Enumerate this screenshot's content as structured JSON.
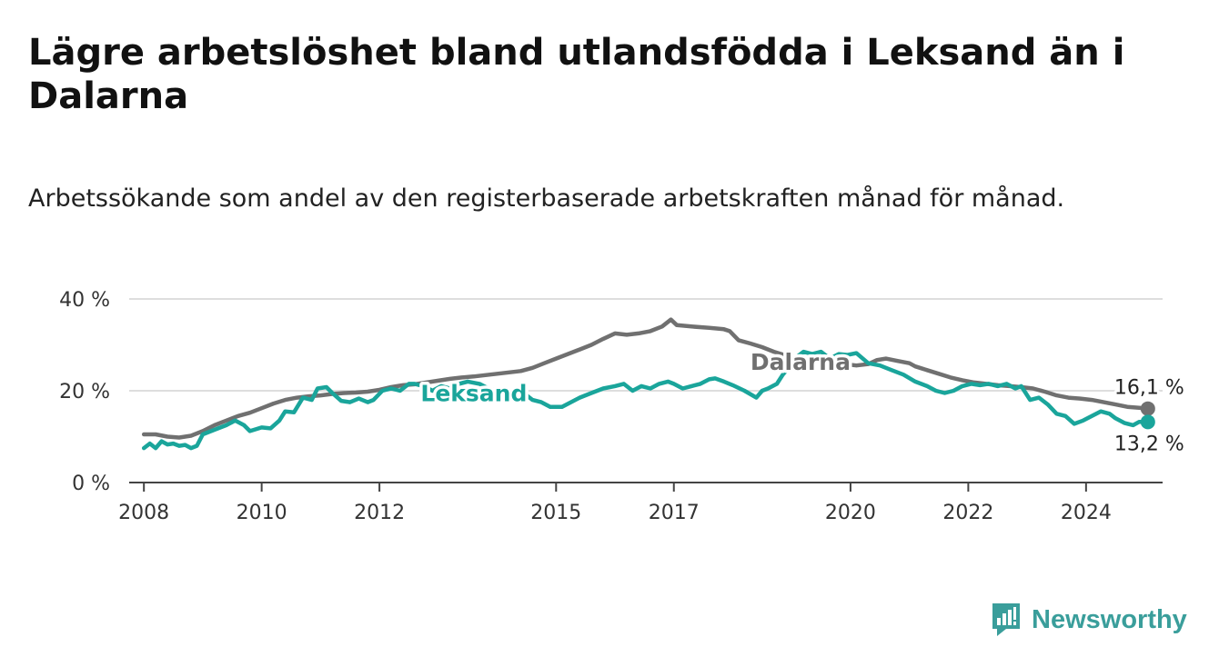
{
  "title": "Lägre arbetslöshet bland utlandsfödda i Leksand än i Dalarna",
  "subtitle": "Arbetssökande som andel av den registerbaserade arbetskraften månad för månad.",
  "brand": {
    "name": "Newsworthy",
    "icon": "newsworthy-chart-icon",
    "color": "#3a9e9b"
  },
  "chart_data": {
    "type": "line",
    "y_range": [
      0,
      40
    ],
    "y_ticks": [
      {
        "value": 0,
        "label": "0 %"
      },
      {
        "value": 20,
        "label": "20 %"
      },
      {
        "value": 40,
        "label": "40 %"
      }
    ],
    "x_range": [
      2007.75,
      2025.3
    ],
    "x_ticks": [
      {
        "value": 2008,
        "label": "2008"
      },
      {
        "value": 2010,
        "label": "2010"
      },
      {
        "value": 2012,
        "label": "2012"
      },
      {
        "value": 2015,
        "label": "2015"
      },
      {
        "value": 2017,
        "label": "2017"
      },
      {
        "value": 2020,
        "label": "2020"
      },
      {
        "value": 2022,
        "label": "2022"
      },
      {
        "value": 2024,
        "label": "2024"
      }
    ],
    "grid": "horizontal",
    "series": [
      {
        "name": "Dalarna",
        "color": "#707070",
        "end_label": "16,1 %",
        "points": [
          [
            2008.0,
            10.5
          ],
          [
            2008.2,
            10.5
          ],
          [
            2008.4,
            10.0
          ],
          [
            2008.6,
            9.8
          ],
          [
            2008.8,
            10.2
          ],
          [
            2009.0,
            11.2
          ],
          [
            2009.2,
            12.5
          ],
          [
            2009.4,
            13.5
          ],
          [
            2009.6,
            14.5
          ],
          [
            2009.8,
            15.2
          ],
          [
            2010.0,
            16.2
          ],
          [
            2010.2,
            17.2
          ],
          [
            2010.4,
            18.0
          ],
          [
            2010.6,
            18.5
          ],
          [
            2010.8,
            18.8
          ],
          [
            2011.0,
            19.0
          ],
          [
            2011.2,
            19.3
          ],
          [
            2011.4,
            19.5
          ],
          [
            2011.6,
            19.6
          ],
          [
            2011.8,
            19.8
          ],
          [
            2012.0,
            20.2
          ],
          [
            2012.2,
            20.8
          ],
          [
            2012.4,
            21.2
          ],
          [
            2012.6,
            21.4
          ],
          [
            2012.8,
            21.8
          ],
          [
            2013.0,
            22.2
          ],
          [
            2013.2,
            22.6
          ],
          [
            2013.4,
            22.9
          ],
          [
            2013.6,
            23.1
          ],
          [
            2013.8,
            23.4
          ],
          [
            2014.0,
            23.7
          ],
          [
            2014.2,
            24.0
          ],
          [
            2014.4,
            24.3
          ],
          [
            2014.6,
            25.0
          ],
          [
            2014.8,
            26.0
          ],
          [
            2015.0,
            27.0
          ],
          [
            2015.2,
            28.0
          ],
          [
            2015.4,
            29.0
          ],
          [
            2015.6,
            30.0
          ],
          [
            2015.8,
            31.3
          ],
          [
            2016.0,
            32.5
          ],
          [
            2016.2,
            32.2
          ],
          [
            2016.4,
            32.5
          ],
          [
            2016.6,
            33.0
          ],
          [
            2016.8,
            34.0
          ],
          [
            2016.95,
            35.5
          ],
          [
            2017.05,
            34.3
          ],
          [
            2017.3,
            34.0
          ],
          [
            2017.6,
            33.7
          ],
          [
            2017.85,
            33.4
          ],
          [
            2017.95,
            33.0
          ],
          [
            2018.1,
            31.0
          ],
          [
            2018.3,
            30.3
          ],
          [
            2018.5,
            29.5
          ],
          [
            2018.7,
            28.5
          ],
          [
            2018.9,
            27.7
          ],
          [
            2019.1,
            27.2
          ],
          [
            2019.3,
            26.8
          ],
          [
            2019.5,
            26.3
          ],
          [
            2019.7,
            26.0
          ],
          [
            2019.9,
            25.8
          ],
          [
            2020.1,
            25.5
          ],
          [
            2020.3,
            25.8
          ],
          [
            2020.45,
            26.7
          ],
          [
            2020.6,
            27.0
          ],
          [
            2020.8,
            26.5
          ],
          [
            2021.0,
            26.0
          ],
          [
            2021.1,
            25.3
          ],
          [
            2021.3,
            24.5
          ],
          [
            2021.5,
            23.7
          ],
          [
            2021.7,
            22.9
          ],
          [
            2021.9,
            22.3
          ],
          [
            2022.1,
            21.8
          ],
          [
            2022.3,
            21.5
          ],
          [
            2022.5,
            21.2
          ],
          [
            2022.7,
            21.0
          ],
          [
            2022.9,
            20.8
          ],
          [
            2023.1,
            20.5
          ],
          [
            2023.3,
            19.8
          ],
          [
            2023.5,
            19.0
          ],
          [
            2023.7,
            18.5
          ],
          [
            2023.9,
            18.3
          ],
          [
            2024.1,
            18.0
          ],
          [
            2024.3,
            17.5
          ],
          [
            2024.5,
            17.0
          ],
          [
            2024.7,
            16.5
          ],
          [
            2024.9,
            16.3
          ],
          [
            2025.05,
            16.1
          ]
        ]
      },
      {
        "name": "Leksand",
        "color": "#1aa59b",
        "end_label": "13,2 %",
        "points": [
          [
            2008.0,
            7.5
          ],
          [
            2008.1,
            8.5
          ],
          [
            2008.2,
            7.5
          ],
          [
            2008.3,
            9.0
          ],
          [
            2008.4,
            8.3
          ],
          [
            2008.5,
            8.5
          ],
          [
            2008.6,
            8.0
          ],
          [
            2008.7,
            8.2
          ],
          [
            2008.8,
            7.5
          ],
          [
            2008.9,
            8.0
          ],
          [
            2009.0,
            10.5
          ],
          [
            2009.2,
            11.5
          ],
          [
            2009.4,
            12.5
          ],
          [
            2009.55,
            13.5
          ],
          [
            2009.7,
            12.5
          ],
          [
            2009.8,
            11.2
          ],
          [
            2010.0,
            12.0
          ],
          [
            2010.15,
            11.8
          ],
          [
            2010.3,
            13.5
          ],
          [
            2010.4,
            15.5
          ],
          [
            2010.55,
            15.3
          ],
          [
            2010.7,
            18.5
          ],
          [
            2010.85,
            18.0
          ],
          [
            2010.95,
            20.5
          ],
          [
            2011.1,
            20.8
          ],
          [
            2011.2,
            19.5
          ],
          [
            2011.35,
            17.8
          ],
          [
            2011.5,
            17.5
          ],
          [
            2011.65,
            18.3
          ],
          [
            2011.8,
            17.5
          ],
          [
            2011.9,
            18.0
          ],
          [
            2012.05,
            20.0
          ],
          [
            2012.2,
            20.5
          ],
          [
            2012.35,
            20.0
          ],
          [
            2012.5,
            21.5
          ],
          [
            2012.6,
            21.5
          ],
          [
            2012.75,
            21.0
          ],
          [
            2012.9,
            20.0
          ],
          [
            2013.05,
            21.0
          ],
          [
            2013.2,
            20.5
          ],
          [
            2013.35,
            21.5
          ],
          [
            2013.5,
            22.0
          ],
          [
            2013.7,
            21.5
          ],
          [
            2013.85,
            20.5
          ],
          [
            2014.0,
            20.0
          ],
          [
            2014.2,
            18.5
          ],
          [
            2014.4,
            20.0
          ],
          [
            2014.6,
            18.0
          ],
          [
            2014.75,
            17.5
          ],
          [
            2014.9,
            16.5
          ],
          [
            2015.1,
            16.5
          ],
          [
            2015.4,
            18.5
          ],
          [
            2015.6,
            19.5
          ],
          [
            2015.8,
            20.5
          ],
          [
            2016.0,
            21.0
          ],
          [
            2016.15,
            21.5
          ],
          [
            2016.3,
            20.0
          ],
          [
            2016.45,
            21.0
          ],
          [
            2016.6,
            20.5
          ],
          [
            2016.75,
            21.5
          ],
          [
            2016.9,
            22.0
          ],
          [
            2017.0,
            21.5
          ],
          [
            2017.15,
            20.5
          ],
          [
            2017.3,
            21.0
          ],
          [
            2017.45,
            21.5
          ],
          [
            2017.6,
            22.5
          ],
          [
            2017.7,
            22.7
          ],
          [
            2017.85,
            22.0
          ],
          [
            2018.0,
            21.2
          ],
          [
            2018.2,
            20.0
          ],
          [
            2018.4,
            18.5
          ],
          [
            2018.5,
            20.0
          ],
          [
            2018.6,
            20.5
          ],
          [
            2018.75,
            21.5
          ],
          [
            2018.85,
            23.5
          ],
          [
            2018.95,
            25.0
          ],
          [
            2019.05,
            27.0
          ],
          [
            2019.2,
            28.5
          ],
          [
            2019.35,
            28.0
          ],
          [
            2019.5,
            28.5
          ],
          [
            2019.65,
            27.0
          ],
          [
            2019.8,
            28.0
          ],
          [
            2019.95,
            27.8
          ],
          [
            2020.1,
            28.2
          ],
          [
            2020.3,
            26.0
          ],
          [
            2020.5,
            25.5
          ],
          [
            2020.7,
            24.5
          ],
          [
            2020.9,
            23.5
          ],
          [
            2021.1,
            22.0
          ],
          [
            2021.3,
            21.0
          ],
          [
            2021.45,
            20.0
          ],
          [
            2021.6,
            19.5
          ],
          [
            2021.75,
            20.0
          ],
          [
            2021.9,
            21.0
          ],
          [
            2022.05,
            21.5
          ],
          [
            2022.2,
            21.2
          ],
          [
            2022.35,
            21.5
          ],
          [
            2022.5,
            21.0
          ],
          [
            2022.65,
            21.5
          ],
          [
            2022.8,
            20.5
          ],
          [
            2022.9,
            21.0
          ],
          [
            2023.05,
            18.0
          ],
          [
            2023.2,
            18.5
          ],
          [
            2023.35,
            17.0
          ],
          [
            2023.5,
            15.0
          ],
          [
            2023.65,
            14.5
          ],
          [
            2023.8,
            12.8
          ],
          [
            2023.95,
            13.5
          ],
          [
            2024.1,
            14.5
          ],
          [
            2024.25,
            15.5
          ],
          [
            2024.4,
            15.0
          ],
          [
            2024.5,
            14.0
          ],
          [
            2024.65,
            13.0
          ],
          [
            2024.8,
            12.5
          ],
          [
            2024.9,
            13.2
          ],
          [
            2025.05,
            13.2
          ]
        ]
      }
    ]
  }
}
